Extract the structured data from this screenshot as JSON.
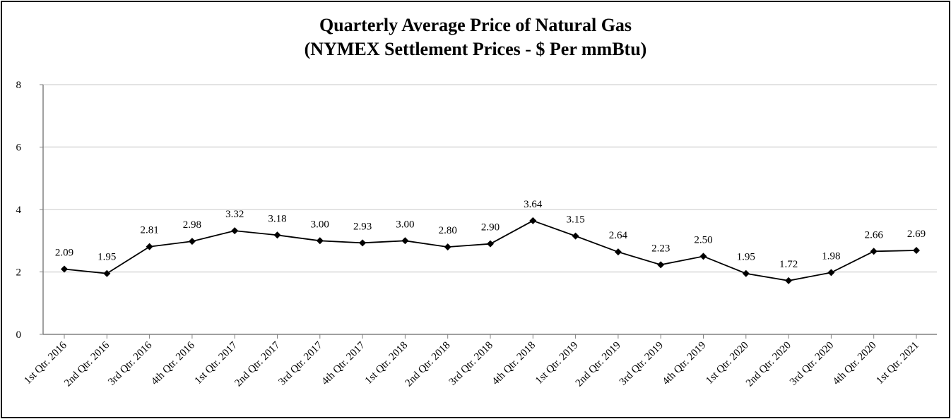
{
  "chart_data": {
    "type": "line",
    "title": "Quarterly Average Price of Natural Gas",
    "subtitle": "(NYMEX Settlement Prices - $ Per mmBtu)",
    "xlabel": "",
    "ylabel": "",
    "ylim": [
      0,
      8
    ],
    "yticks": [
      "0",
      "2",
      "4",
      "6",
      "8"
    ],
    "grid": true,
    "categories": [
      "1st Qtr. 2016",
      "2nd Qtr. 2016",
      "3rd Qtr. 2016",
      "4th Qtr. 2016",
      "1st Qtr. 2017",
      "2nd Qtr. 2017",
      "3rd Qtr. 2017",
      "4th Qtr. 2017",
      "1st Qtr. 2018",
      "2nd Qtr. 2018",
      "3rd Qtr. 2018",
      "4th Qtr. 2018",
      "1st Qtr. 2019",
      "2nd Qtr. 2019",
      "3rd Qtr. 2019",
      "4th Qtr. 2019",
      "1st Qtr. 2020",
      "2nd Qtr. 2020",
      "3rd Qtr. 2020",
      "4th Qtr. 2020",
      "1st Qtr. 2021"
    ],
    "values": [
      2.09,
      1.95,
      2.81,
      2.98,
      3.32,
      3.18,
      3.0,
      2.93,
      3.0,
      2.8,
      2.9,
      3.64,
      3.15,
      2.64,
      2.23,
      2.5,
      1.95,
      1.72,
      1.98,
      2.66,
      2.69
    ],
    "value_labels": [
      "2.09",
      "1.95",
      "2.81",
      "2.98",
      "3.32",
      "3.18",
      "3.00",
      "2.93",
      "3.00",
      "2.80",
      "2.90",
      "3.64",
      "3.15",
      "2.64",
      "2.23",
      "2.50",
      "1.95",
      "1.72",
      "1.98",
      "2.66",
      "2.69"
    ],
    "colors": {
      "line": "#000000",
      "grid": "#e3e3e3",
      "axis": "#808080"
    }
  }
}
